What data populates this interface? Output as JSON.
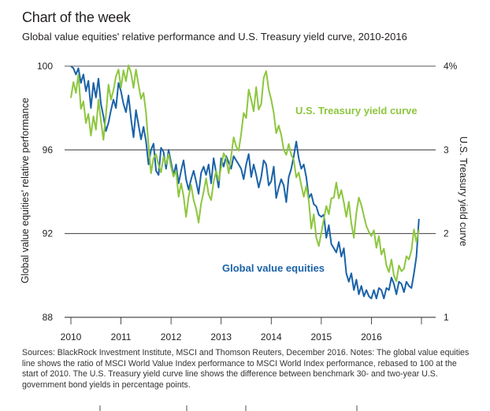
{
  "header": {
    "title": "Chart of the week",
    "subtitle": "Global value equities' relative performance and U.S. Treasury yield curve, 2010-2016"
  },
  "footer": {
    "sources": "Sources: BlackRock Investment Institute, MSCI and Thomson Reuters, December 2016. Notes: The global value equities line shows the ratio of MSCI World Value Index performance to MSCI World Index performance, rebased to 100 at the start of 2010. The U.S. Treasury yield curve line shows the difference between benchmark 30- and two-year U.S. government bond yields in percentage points."
  },
  "colors": {
    "equities": "#1a62a8",
    "yield": "#8dc63f",
    "grid": "#231f20"
  },
  "chart_data": {
    "type": "line",
    "title": "Global value equities' relative performance and U.S. Treasury yield curve, 2010-2016",
    "xlabel": "",
    "ylabel": "Global value equities' relative performance",
    "ylabel_right": "U.S. Treasury yield curve",
    "xlim": [
      2010,
      2017
    ],
    "ylim": [
      88,
      100
    ],
    "ylim_right": [
      1,
      4
    ],
    "x_ticks": [
      "2010",
      "2011",
      "2012",
      "2013",
      "2014",
      "2015",
      "2016"
    ],
    "y_ticks": [
      "100",
      "96",
      "92",
      "88"
    ],
    "y_ticks_right": [
      "4%",
      "3",
      "2",
      "1"
    ],
    "grid": true,
    "series": [
      {
        "name": "Global value equities",
        "axis": "left",
        "x": [
          2010.0,
          2010.05,
          2010.1,
          2010.15,
          2010.2,
          2010.25,
          2010.3,
          2010.35,
          2010.4,
          2010.45,
          2010.5,
          2010.55,
          2010.6,
          2010.65,
          2010.7,
          2010.75,
          2010.8,
          2010.85,
          2010.9,
          2010.95,
          2011.0,
          2011.05,
          2011.1,
          2011.15,
          2011.2,
          2011.25,
          2011.3,
          2011.35,
          2011.4,
          2011.45,
          2011.5,
          2011.55,
          2011.6,
          2011.65,
          2011.7,
          2011.75,
          2011.8,
          2011.85,
          2011.9,
          2011.95,
          2012.0,
          2012.05,
          2012.1,
          2012.15,
          2012.2,
          2012.25,
          2012.3,
          2012.35,
          2012.4,
          2012.45,
          2012.5,
          2012.55,
          2012.6,
          2012.65,
          2012.7,
          2012.75,
          2012.8,
          2012.85,
          2012.9,
          2012.95,
          2013.0,
          2013.05,
          2013.1,
          2013.15,
          2013.2,
          2013.25,
          2013.3,
          2013.35,
          2013.4,
          2013.45,
          2013.5,
          2013.55,
          2013.6,
          2013.65,
          2013.7,
          2013.75,
          2013.8,
          2013.85,
          2013.9,
          2013.95,
          2014.0,
          2014.05,
          2014.1,
          2014.15,
          2014.2,
          2014.25,
          2014.3,
          2014.35,
          2014.4,
          2014.45,
          2014.5,
          2014.55,
          2014.6,
          2014.65,
          2014.7,
          2014.75,
          2014.8,
          2014.85,
          2014.9,
          2014.95,
          2015.0,
          2015.05,
          2015.1,
          2015.15,
          2015.2,
          2015.25,
          2015.3,
          2015.35,
          2015.4,
          2015.45,
          2015.5,
          2015.55,
          2015.6,
          2015.65,
          2015.7,
          2015.75,
          2015.8,
          2015.85,
          2015.9,
          2015.95,
          2016.0,
          2016.05,
          2016.1,
          2016.15,
          2016.2,
          2016.25,
          2016.3,
          2016.35,
          2016.4,
          2016.45,
          2016.5,
          2016.55,
          2016.6,
          2016.65,
          2016.7,
          2016.75,
          2016.8,
          2016.85,
          2016.9,
          2016.95
        ],
        "values": [
          100.0,
          99.9,
          99.6,
          99.9,
          99.2,
          99.6,
          98.8,
          99.3,
          98.0,
          99.2,
          98.5,
          99.4,
          98.2,
          97.6,
          96.9,
          97.3,
          97.9,
          98.4,
          98.0,
          99.2,
          98.8,
          98.2,
          97.8,
          98.6,
          97.5,
          96.6,
          97.9,
          97.2,
          96.5,
          97.1,
          96.4,
          95.3,
          96.0,
          96.3,
          95.0,
          94.8,
          96.1,
          95.9,
          95.1,
          96.0,
          95.4,
          94.8,
          95.3,
          94.4,
          95.0,
          95.5,
          94.6,
          94.1,
          94.6,
          95.0,
          94.5,
          93.9,
          94.9,
          95.2,
          94.8,
          95.3,
          94.4,
          95.6,
          94.9,
          94.2,
          95.6,
          95.2,
          95.7,
          95.4,
          95.1,
          95.7,
          95.5,
          95.3,
          95.1,
          94.6,
          95.3,
          95.8,
          94.7,
          95.3,
          94.8,
          94.2,
          94.7,
          95.5,
          95.3,
          94.3,
          94.5,
          95.2,
          93.7,
          94.2,
          94.6,
          94.3,
          93.5,
          94.7,
          95.1,
          95.7,
          96.4,
          95.6,
          95.1,
          95.3,
          94.7,
          93.7,
          93.9,
          93.4,
          93.3,
          92.9,
          92.8,
          92.9,
          91.8,
          92.4,
          91.5,
          91.3,
          91.1,
          91.6,
          90.9,
          91.3,
          90.1,
          89.7,
          90.1,
          89.3,
          89.8,
          89.1,
          89.5,
          89.0,
          89.3,
          89.0,
          88.9,
          89.3,
          88.9,
          89.4,
          89.3,
          88.9,
          89.4,
          89.3,
          89.9,
          89.6,
          89.1,
          89.7,
          89.6,
          89.2,
          89.7,
          89.5,
          89.4,
          90.1,
          90.9,
          92.7
        ]
      },
      {
        "name": "U.S. Treasury yield curve",
        "axis": "right",
        "x": [
          2010.0,
          2010.05,
          2010.1,
          2010.15,
          2010.2,
          2010.25,
          2010.3,
          2010.35,
          2010.4,
          2010.45,
          2010.5,
          2010.55,
          2010.6,
          2010.65,
          2010.7,
          2010.75,
          2010.8,
          2010.85,
          2010.9,
          2010.95,
          2011.0,
          2011.05,
          2011.1,
          2011.15,
          2011.2,
          2011.25,
          2011.3,
          2011.35,
          2011.4,
          2011.45,
          2011.5,
          2011.55,
          2011.6,
          2011.65,
          2011.7,
          2011.75,
          2011.8,
          2011.85,
          2011.9,
          2011.95,
          2012.0,
          2012.05,
          2012.1,
          2012.15,
          2012.2,
          2012.25,
          2012.3,
          2012.35,
          2012.4,
          2012.45,
          2012.5,
          2012.55,
          2012.6,
          2012.65,
          2012.7,
          2012.75,
          2012.8,
          2012.85,
          2012.9,
          2012.95,
          2013.0,
          2013.05,
          2013.1,
          2013.15,
          2013.2,
          2013.25,
          2013.3,
          2013.35,
          2013.4,
          2013.45,
          2013.5,
          2013.55,
          2013.6,
          2013.65,
          2013.7,
          2013.75,
          2013.8,
          2013.85,
          2013.9,
          2013.95,
          2014.0,
          2014.05,
          2014.1,
          2014.15,
          2014.2,
          2014.25,
          2014.3,
          2014.35,
          2014.4,
          2014.45,
          2014.5,
          2014.55,
          2014.6,
          2014.65,
          2014.7,
          2014.75,
          2014.8,
          2014.85,
          2014.9,
          2014.95,
          2015.0,
          2015.05,
          2015.1,
          2015.15,
          2015.2,
          2015.25,
          2015.3,
          2015.35,
          2015.4,
          2015.45,
          2015.5,
          2015.55,
          2015.6,
          2015.65,
          2015.7,
          2015.75,
          2015.8,
          2015.85,
          2015.9,
          2015.95,
          2016.0,
          2016.05,
          2016.1,
          2016.15,
          2016.2,
          2016.25,
          2016.3,
          2016.35,
          2016.4,
          2016.45,
          2016.5,
          2016.55,
          2016.6,
          2016.65,
          2016.7,
          2016.75,
          2016.8,
          2016.85,
          2016.9,
          2016.95
        ],
        "values": [
          3.62,
          3.81,
          3.68,
          3.9,
          3.49,
          3.58,
          3.32,
          3.43,
          3.17,
          3.4,
          3.24,
          3.6,
          3.35,
          3.12,
          3.42,
          3.78,
          3.6,
          3.71,
          3.88,
          3.96,
          3.74,
          3.95,
          3.82,
          4.01,
          3.92,
          3.74,
          3.96,
          3.78,
          3.61,
          3.68,
          3.44,
          3.06,
          2.72,
          2.9,
          2.95,
          2.82,
          2.73,
          2.92,
          2.83,
          2.95,
          2.8,
          2.68,
          2.75,
          2.44,
          2.6,
          2.45,
          2.2,
          2.44,
          2.58,
          2.4,
          2.3,
          2.13,
          2.36,
          2.5,
          2.66,
          2.47,
          2.4,
          2.62,
          2.75,
          2.63,
          2.79,
          2.96,
          2.9,
          2.72,
          2.92,
          3.15,
          3.04,
          2.99,
          3.19,
          3.44,
          3.38,
          3.72,
          3.6,
          3.46,
          3.75,
          3.48,
          3.55,
          3.86,
          3.94,
          3.72,
          3.6,
          3.44,
          3.2,
          3.29,
          3.18,
          3.0,
          2.94,
          3.07,
          2.94,
          2.88,
          2.67,
          2.73,
          2.58,
          2.44,
          2.57,
          2.39,
          2.06,
          2.23,
          1.95,
          1.85,
          2.01,
          2.17,
          2.33,
          2.23,
          2.42,
          2.43,
          2.61,
          2.42,
          2.52,
          2.37,
          2.2,
          2.38,
          2.12,
          1.95,
          2.25,
          2.43,
          2.34,
          2.21,
          2.09,
          2.02,
          1.97,
          2.04,
          1.83,
          1.97,
          1.75,
          1.82,
          1.62,
          1.54,
          1.69,
          1.5,
          1.43,
          1.62,
          1.55,
          1.58,
          1.73,
          1.69,
          1.8,
          2.05,
          1.9,
          2.05
        ]
      }
    ],
    "annotations": [
      "U.S. Treasury yield curve",
      "Global value equities"
    ]
  }
}
